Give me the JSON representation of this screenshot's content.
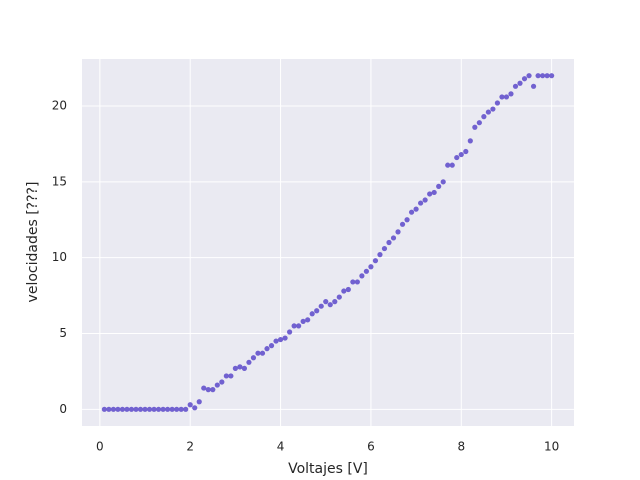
{
  "chart_data": {
    "type": "scatter",
    "x_label": "Voltajes [V]",
    "y_label": "velocidades [???]",
    "x": [
      0.1,
      0.2,
      0.3,
      0.4,
      0.5,
      0.6,
      0.7,
      0.8,
      0.9,
      1.0,
      1.1,
      1.2,
      1.3,
      1.4,
      1.5,
      1.6,
      1.7,
      1.8,
      1.9,
      2.0,
      2.1,
      2.2,
      2.3,
      2.4,
      2.5,
      2.6,
      2.7,
      2.8,
      2.9,
      3.0,
      3.1,
      3.2,
      3.3,
      3.4,
      3.5,
      3.6,
      3.7,
      3.8,
      3.9,
      4.0,
      4.1,
      4.2,
      4.3,
      4.4,
      4.5,
      4.6,
      4.7,
      4.8,
      4.9,
      5.0,
      5.1,
      5.2,
      5.3,
      5.4,
      5.5,
      5.6,
      5.7,
      5.8,
      5.9,
      6.0,
      6.1,
      6.2,
      6.3,
      6.4,
      6.5,
      6.6,
      6.7,
      6.8,
      6.9,
      7.0,
      7.1,
      7.2,
      7.3,
      7.4,
      7.5,
      7.6,
      7.7,
      7.8,
      7.9,
      8.0,
      8.1,
      8.2,
      8.3,
      8.4,
      8.5,
      8.6,
      8.7,
      8.8,
      8.9,
      9.0,
      9.1,
      9.2,
      9.3,
      9.4,
      9.5,
      9.6,
      9.7,
      9.8,
      9.9,
      10.0
    ],
    "values": [
      0,
      0,
      0,
      0,
      0,
      0,
      0,
      0,
      0,
      0,
      0,
      0,
      0,
      0,
      0,
      0,
      0,
      0,
      0,
      0.3,
      0.1,
      0.5,
      1.4,
      1.3,
      1.3,
      1.6,
      1.8,
      2.2,
      2.2,
      2.7,
      2.8,
      2.7,
      3.1,
      3.4,
      3.7,
      3.7,
      4.0,
      4.2,
      4.5,
      4.6,
      4.7,
      5.1,
      5.5,
      5.5,
      5.8,
      5.9,
      6.3,
      6.5,
      6.8,
      7.1,
      6.9,
      7.1,
      7.4,
      7.8,
      7.9,
      8.4,
      8.4,
      8.8,
      9.1,
      9.4,
      9.8,
      10.2,
      10.6,
      11.0,
      11.3,
      11.7,
      12.2,
      12.5,
      13.0,
      13.2,
      13.6,
      13.8,
      14.2,
      14.3,
      14.7,
      15.0,
      16.1,
      16.1,
      16.6,
      16.8,
      17.0,
      17.7,
      18.6,
      18.9,
      19.3,
      19.6,
      19.8,
      20.2,
      20.6,
      20.6,
      20.8,
      21.3,
      21.5,
      21.8,
      22.0,
      21.3,
      22.0,
      22.0,
      22.0,
      22.0
    ],
    "color": "#6a5acd",
    "xlim": [
      -0.395,
      10.495
    ],
    "ylim": [
      -1.1,
      23.1
    ],
    "xticks": [
      0,
      2,
      4,
      6,
      8,
      10
    ],
    "yticks": [
      0,
      5,
      10,
      15,
      20
    ],
    "grid": true
  }
}
